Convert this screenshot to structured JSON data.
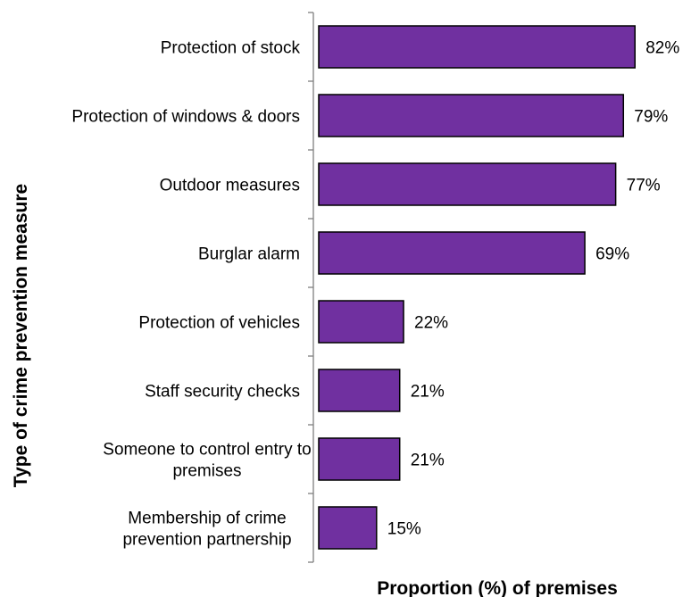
{
  "chart_data": {
    "type": "bar",
    "orientation": "horizontal",
    "categories": [
      [
        "Protection of stock"
      ],
      [
        "Protection of windows & doors"
      ],
      [
        "Outdoor measures"
      ],
      [
        "Burglar alarm"
      ],
      [
        "Protection of vehicles"
      ],
      [
        "Staff security checks"
      ],
      [
        "Someone to control entry to",
        "premises"
      ],
      [
        "Membership of crime",
        "prevention partnership"
      ]
    ],
    "values": [
      82,
      79,
      77,
      69,
      22,
      21,
      21,
      15
    ],
    "value_labels": [
      "82%",
      "79%",
      "77%",
      "69%",
      "22%",
      "21%",
      "21%",
      "15%"
    ],
    "xlabel": "Proportion (%) of premises",
    "ylabel": "Type of crime prevention measure",
    "xlim": [
      0,
      100
    ],
    "grid": false,
    "bar_color": "#7030A0",
    "bar_edge_color": "#000000"
  }
}
